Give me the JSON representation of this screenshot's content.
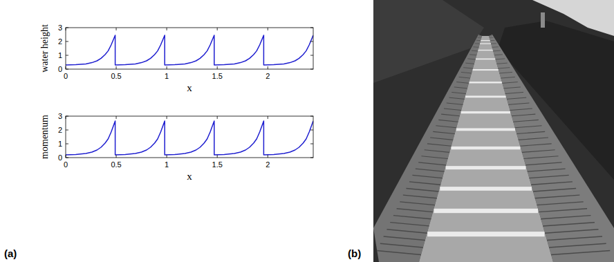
{
  "chart_data": [
    {
      "type": "line",
      "x_label": "x",
      "y_label": "water height",
      "color": "#1f1fd0",
      "grid": false,
      "xlim": [
        0,
        2.45
      ],
      "ylim": [
        0,
        3
      ],
      "xticks": [
        0,
        0.5,
        1,
        1.5,
        2
      ],
      "yticks": [
        0,
        1,
        2,
        3
      ],
      "x": [
        0,
        0.1,
        0.2,
        0.26,
        0.31,
        0.35,
        0.39,
        0.42,
        0.45,
        0.47,
        0.49,
        0.49,
        0.59,
        0.69,
        0.75,
        0.8,
        0.84,
        0.88,
        0.91,
        0.94,
        0.96,
        0.98,
        0.98,
        1.08,
        1.18,
        1.24,
        1.29,
        1.33,
        1.37,
        1.4,
        1.43,
        1.45,
        1.47,
        1.47,
        1.57,
        1.67,
        1.73,
        1.78,
        1.82,
        1.86,
        1.89,
        1.92,
        1.94,
        1.96,
        1.96,
        2.06,
        2.16,
        2.22,
        2.27,
        2.31,
        2.35,
        2.38,
        2.41,
        2.43,
        2.45
      ],
      "values": [
        0.3,
        0.32,
        0.38,
        0.47,
        0.6,
        0.78,
        1.05,
        1.32,
        1.75,
        2.1,
        2.45,
        0.3,
        0.32,
        0.38,
        0.47,
        0.6,
        0.78,
        1.05,
        1.32,
        1.75,
        2.1,
        2.45,
        0.3,
        0.32,
        0.38,
        0.47,
        0.6,
        0.78,
        1.05,
        1.32,
        1.75,
        2.1,
        2.45,
        0.3,
        0.32,
        0.38,
        0.47,
        0.6,
        0.78,
        1.05,
        1.32,
        1.75,
        2.1,
        2.45,
        0.3,
        0.32,
        0.38,
        0.47,
        0.6,
        0.78,
        1.05,
        1.32,
        1.75,
        2.1,
        2.45
      ]
    },
    {
      "type": "line",
      "x_label": "x",
      "y_label": "momentum",
      "color": "#1f1fd0",
      "grid": false,
      "xlim": [
        0,
        2.45
      ],
      "ylim": [
        0,
        3
      ],
      "xticks": [
        0,
        0.5,
        1,
        1.5,
        2
      ],
      "yticks": [
        0,
        1,
        2,
        3
      ],
      "x": [
        0,
        0.1,
        0.2,
        0.26,
        0.31,
        0.35,
        0.39,
        0.42,
        0.45,
        0.47,
        0.49,
        0.49,
        0.59,
        0.69,
        0.75,
        0.8,
        0.84,
        0.88,
        0.91,
        0.94,
        0.96,
        0.98,
        0.98,
        1.08,
        1.18,
        1.24,
        1.29,
        1.33,
        1.37,
        1.4,
        1.43,
        1.45,
        1.47,
        1.47,
        1.57,
        1.67,
        1.73,
        1.78,
        1.82,
        1.86,
        1.89,
        1.92,
        1.94,
        1.96,
        1.96,
        2.06,
        2.16,
        2.22,
        2.27,
        2.31,
        2.35,
        2.38,
        2.41,
        2.43,
        2.45
      ],
      "values": [
        0.2,
        0.22,
        0.3,
        0.4,
        0.55,
        0.75,
        1.05,
        1.35,
        1.85,
        2.25,
        2.65,
        0.2,
        0.22,
        0.3,
        0.4,
        0.55,
        0.75,
        1.05,
        1.35,
        1.85,
        2.25,
        2.65,
        0.2,
        0.22,
        0.3,
        0.4,
        0.55,
        0.75,
        1.05,
        1.35,
        1.85,
        2.25,
        2.65,
        0.2,
        0.22,
        0.3,
        0.4,
        0.55,
        0.75,
        1.05,
        1.35,
        1.85,
        2.25,
        2.65,
        0.2,
        0.22,
        0.3,
        0.4,
        0.55,
        0.75,
        1.05,
        1.35,
        1.85,
        2.25,
        2.65
      ]
    }
  ],
  "panel_labels": [
    "(a)",
    "(b)"
  ]
}
